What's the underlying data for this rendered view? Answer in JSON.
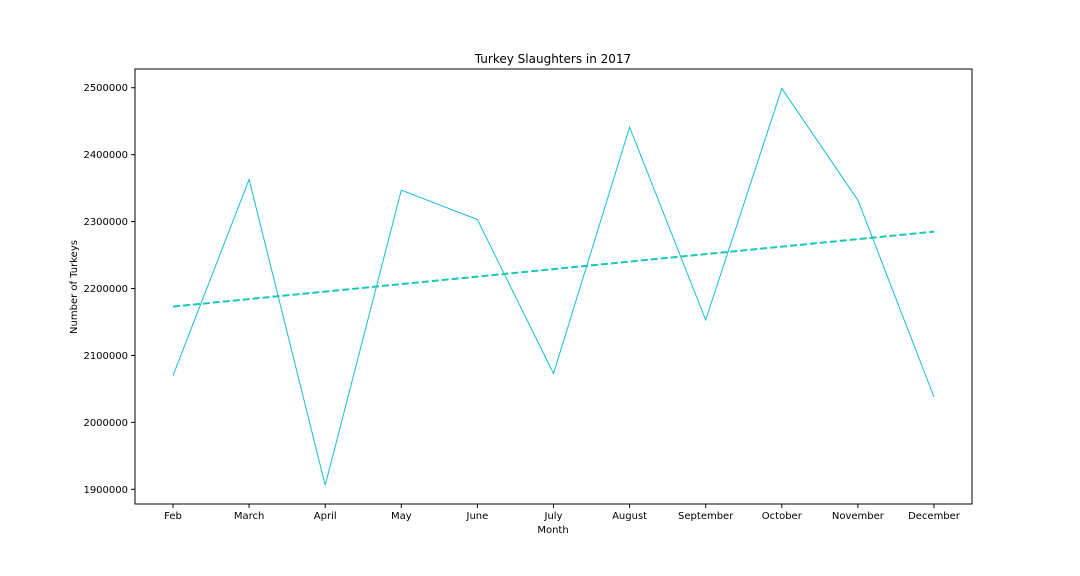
{
  "chart_data": {
    "type": "line",
    "title": "Turkey Slaughters in 2017",
    "xlabel": "Month",
    "ylabel": "Number of Turkeys",
    "categories": [
      "Feb",
      "March",
      "April",
      "May",
      "June",
      "July",
      "August",
      "September",
      "October",
      "November",
      "December"
    ],
    "series": [
      {
        "values": [
          2070000,
          2363000,
          1906000,
          2347000,
          2303000,
          2073000,
          2441000,
          2153000,
          2499000,
          2332000,
          2038000
        ],
        "color": "#17becf",
        "style": "solid"
      },
      {
        "values": [
          2173000,
          2184200,
          2195400,
          2206600,
          2217800,
          2229000,
          2240200,
          2251400,
          2262600,
          2273800,
          2285000
        ],
        "color": "#17c9b3",
        "style": "dashed"
      }
    ],
    "ylim": [
      1878000,
      2528000
    ],
    "yticks": [
      1900000,
      2000000,
      2100000,
      2200000,
      2300000,
      2400000,
      2500000
    ],
    "ytick_labels": [
      "1900000",
      "2000000",
      "2100000",
      "2200000",
      "2300000",
      "2400000",
      "2500000"
    ],
    "grid": false,
    "legend": "none"
  }
}
